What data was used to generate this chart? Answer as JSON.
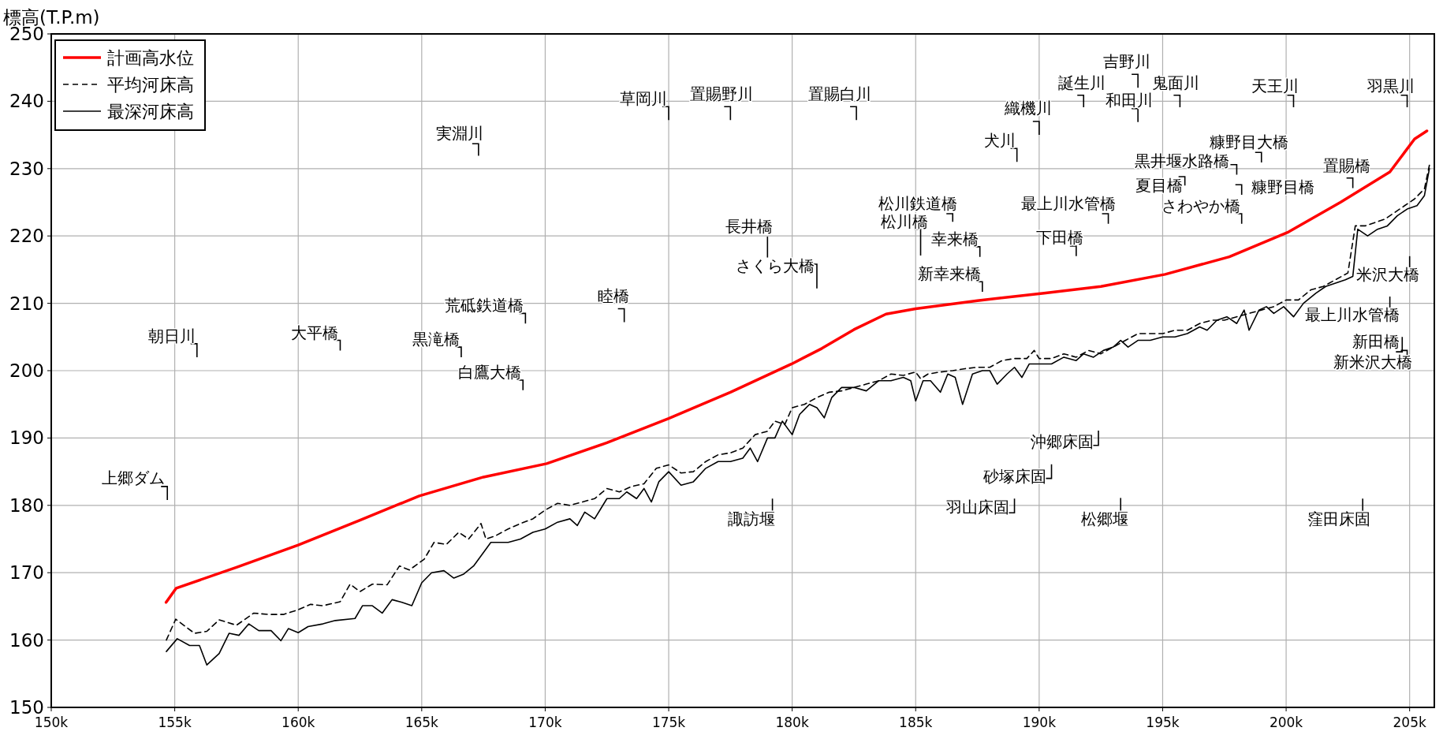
{
  "chart_data": {
    "type": "line",
    "ylabel": "標高(T.P.m)",
    "xlim": [
      150,
      206
    ],
    "ylim": [
      150,
      250
    ],
    "xticks": [
      {
        "value": 150,
        "label": "150k"
      },
      {
        "value": 155,
        "label": "155k"
      },
      {
        "value": 160,
        "label": "160k"
      },
      {
        "value": 165,
        "label": "165k"
      },
      {
        "value": 170,
        "label": "170k"
      },
      {
        "value": 175,
        "label": "175k"
      },
      {
        "value": 180,
        "label": "180k"
      },
      {
        "value": 185,
        "label": "185k"
      },
      {
        "value": 190,
        "label": "190k"
      },
      {
        "value": 195,
        "label": "195k"
      },
      {
        "value": 200,
        "label": "200k"
      },
      {
        "value": 205,
        "label": "205k"
      }
    ],
    "yticks": [
      150,
      160,
      170,
      180,
      190,
      200,
      210,
      220,
      230,
      240,
      250
    ],
    "grid": true,
    "legend": "top left",
    "series": [
      {
        "name": "計画高水位",
        "color": "#ff0000",
        "line_style": "solid",
        "x": [
          154.65,
          155.06,
          157.5,
          160.0,
          162.5,
          164.9,
          167.5,
          170.06,
          172.5,
          175.0,
          177.5,
          179.98,
          181.2,
          182.5,
          183.8,
          185.0,
          187.5,
          190.2,
          192.5,
          195.1,
          197.7,
          200.1,
          202.2,
          204.2,
          205.2,
          205.7
        ],
        "values": [
          165.6,
          167.7,
          170.8,
          174.1,
          177.8,
          181.4,
          184.2,
          186.2,
          189.3,
          192.9,
          196.8,
          201.0,
          203.3,
          206.1,
          208.4,
          209.2,
          210.4,
          211.5,
          212.5,
          214.3,
          216.9,
          220.6,
          225.0,
          229.5,
          234.4,
          235.6
        ]
      },
      {
        "name": "平均河床高",
        "color": "#000000",
        "line_style": "dashed",
        "x": [
          154.66,
          155.04,
          155.8,
          156.3,
          156.8,
          157.5,
          158.2,
          158.8,
          159.4,
          160.0,
          160.5,
          161.0,
          161.7,
          162.1,
          162.5,
          163.0,
          163.6,
          164.1,
          164.5,
          165.1,
          165.5,
          166.0,
          166.5,
          166.9,
          167.4,
          167.6,
          168.0,
          168.5,
          169.0,
          169.5,
          170.0,
          170.5,
          171.0,
          171.5,
          172.0,
          172.5,
          173.0,
          173.5,
          174.0,
          174.5,
          175.0,
          175.5,
          176.0,
          176.5,
          177.0,
          177.5,
          178.0,
          178.5,
          179.0,
          179.3,
          179.7,
          180.0,
          180.5,
          181.0,
          181.5,
          182.0,
          182.5,
          183.0,
          183.5,
          184.0,
          184.5,
          185.0,
          185.2,
          185.5,
          186.0,
          186.5,
          187.0,
          187.5,
          188.0,
          188.5,
          189.0,
          189.5,
          189.8,
          190.0,
          190.5,
          191.0,
          191.5,
          192.0,
          192.5,
          193.0,
          193.5,
          194.0,
          194.5,
          195.0,
          195.5,
          196.0,
          196.5,
          197.0,
          197.5,
          198.0,
          198.5,
          199.0,
          199.5,
          200.0,
          200.5,
          201.0,
          201.5,
          202.0,
          202.5,
          202.8,
          203.2,
          203.6,
          204.0,
          204.4,
          204.8,
          205.2,
          205.6,
          205.8
        ],
        "values": [
          160.0,
          163.1,
          161.0,
          161.3,
          163.0,
          162.2,
          164.0,
          163.8,
          163.8,
          164.5,
          165.3,
          165.1,
          165.7,
          168.3,
          167.2,
          168.3,
          168.2,
          171.0,
          170.4,
          172.0,
          174.5,
          174.2,
          176.0,
          175.0,
          177.3,
          175.0,
          175.5,
          176.5,
          177.3,
          178.0,
          179.3,
          180.3,
          180.0,
          180.5,
          181.0,
          182.5,
          182.0,
          182.8,
          183.2,
          185.5,
          186.0,
          184.8,
          185.0,
          186.5,
          187.5,
          187.8,
          188.5,
          190.5,
          191.0,
          192.5,
          192.0,
          194.5,
          195.0,
          196.0,
          196.8,
          197.0,
          197.5,
          198.0,
          198.5,
          199.5,
          199.3,
          199.8,
          198.8,
          199.5,
          199.8,
          200.0,
          200.3,
          200.5,
          200.5,
          201.5,
          201.8,
          201.8,
          203.0,
          201.8,
          201.8,
          202.5,
          202.0,
          203.0,
          202.5,
          203.5,
          204.5,
          205.5,
          205.5,
          205.5,
          206.0,
          206.0,
          207.0,
          207.5,
          207.5,
          208.0,
          208.5,
          209.0,
          209.5,
          210.5,
          210.5,
          212.0,
          212.5,
          213.5,
          214.5,
          221.5,
          221.5,
          222.0,
          222.5,
          223.5,
          224.5,
          225.5,
          227.0,
          230.5
        ]
      },
      {
        "name": "最深河床高",
        "color": "#000000",
        "line_style": "solid",
        "x": [
          154.66,
          155.1,
          155.6,
          156.0,
          156.3,
          156.8,
          157.2,
          157.6,
          158.0,
          158.4,
          158.9,
          159.3,
          159.6,
          160.0,
          160.4,
          161.0,
          161.5,
          162.3,
          162.6,
          163.0,
          163.4,
          163.8,
          164.2,
          164.6,
          165.0,
          165.4,
          165.9,
          166.3,
          166.7,
          167.1,
          167.8,
          168.2,
          168.5,
          169.0,
          169.5,
          170.0,
          170.5,
          171.0,
          171.3,
          171.6,
          172.0,
          172.5,
          173.0,
          173.3,
          173.7,
          174.0,
          174.3,
          174.6,
          175.0,
          175.5,
          176.0,
          176.5,
          177.0,
          177.5,
          178.0,
          178.3,
          178.6,
          179.0,
          179.3,
          179.6,
          180.0,
          180.3,
          180.7,
          181.0,
          181.3,
          181.6,
          182.0,
          182.5,
          183.0,
          183.5,
          184.0,
          184.5,
          184.8,
          185.0,
          185.3,
          185.6,
          186.0,
          186.3,
          186.6,
          186.9,
          187.3,
          187.7,
          188.0,
          188.3,
          188.7,
          189.0,
          189.3,
          189.6,
          190.0,
          190.5,
          191.0,
          191.5,
          191.8,
          192.2,
          192.6,
          193.0,
          193.3,
          193.6,
          194.0,
          194.5,
          195.0,
          195.5,
          196.0,
          196.5,
          196.8,
          197.2,
          197.6,
          198.0,
          198.3,
          198.5,
          198.9,
          199.2,
          199.5,
          199.9,
          200.3,
          200.7,
          201.2,
          201.6,
          202.0,
          202.4,
          202.7,
          202.9,
          203.3,
          203.7,
          204.1,
          204.5,
          204.9,
          205.3,
          205.6,
          205.8
        ],
        "values": [
          158.3,
          160.2,
          159.2,
          159.2,
          156.3,
          158.0,
          161.0,
          160.7,
          162.4,
          161.4,
          161.4,
          159.9,
          161.7,
          161.1,
          162.0,
          162.4,
          162.9,
          163.2,
          165.1,
          165.1,
          164.0,
          166.0,
          165.6,
          165.1,
          168.5,
          170.0,
          170.3,
          169.2,
          169.8,
          171.0,
          174.5,
          174.5,
          174.5,
          175.0,
          176.0,
          176.5,
          177.5,
          178.0,
          177.0,
          179.0,
          178.0,
          181.0,
          181.0,
          182.0,
          181.0,
          182.5,
          180.5,
          183.5,
          185.0,
          183.0,
          183.5,
          185.5,
          186.5,
          186.5,
          187.0,
          188.5,
          186.5,
          190.0,
          190.0,
          192.5,
          190.5,
          193.5,
          195.0,
          194.5,
          193.0,
          196.0,
          197.5,
          197.5,
          197.0,
          198.5,
          198.5,
          199.0,
          198.5,
          195.5,
          198.5,
          198.5,
          196.8,
          199.5,
          199.0,
          195.0,
          199.5,
          200.0,
          200.0,
          198.0,
          199.5,
          200.5,
          199.0,
          201.0,
          201.0,
          201.0,
          202.0,
          201.5,
          202.5,
          202.0,
          203.0,
          203.5,
          204.5,
          203.5,
          204.5,
          204.5,
          205.0,
          205.0,
          205.5,
          206.5,
          206.0,
          207.5,
          208.0,
          207.0,
          209.0,
          206.0,
          209.0,
          209.5,
          208.5,
          209.5,
          208.0,
          210.0,
          211.5,
          212.5,
          213.0,
          213.5,
          214.0,
          221.0,
          220.0,
          221.0,
          221.5,
          223.0,
          224.0,
          224.5,
          226.0,
          230.0
        ]
      }
    ],
    "annotations": [
      "上郷ダム",
      "朝日川",
      "大平橋",
      "黒滝橋",
      "実淵川",
      "荒砥鉄道橋",
      "白鷹大橋",
      "睦橋",
      "草岡川",
      "置賜野川",
      "置賜白川",
      "長井橋",
      "さくら大橋",
      "諏訪堰",
      "松川鉄道橋",
      "松川橋",
      "幸来橋",
      "新幸来橋",
      "羽山床固",
      "犬川",
      "織機川",
      "誕生川",
      "吉野川",
      "和田川",
      "鬼面川",
      "天王川",
      "羽黒川",
      "最上川水管橋",
      "下田橋",
      "糠野目大橋",
      "黒井堰水路橋",
      "夏目橋",
      "糠野目橋",
      "さわやか橋",
      "置賜橋",
      "米沢大橋",
      "最上川水管橋",
      "新田橋",
      "新米沢大橋",
      "沖郷床固",
      "砂塚床固",
      "松郷堰",
      "窪田床固"
    ]
  }
}
